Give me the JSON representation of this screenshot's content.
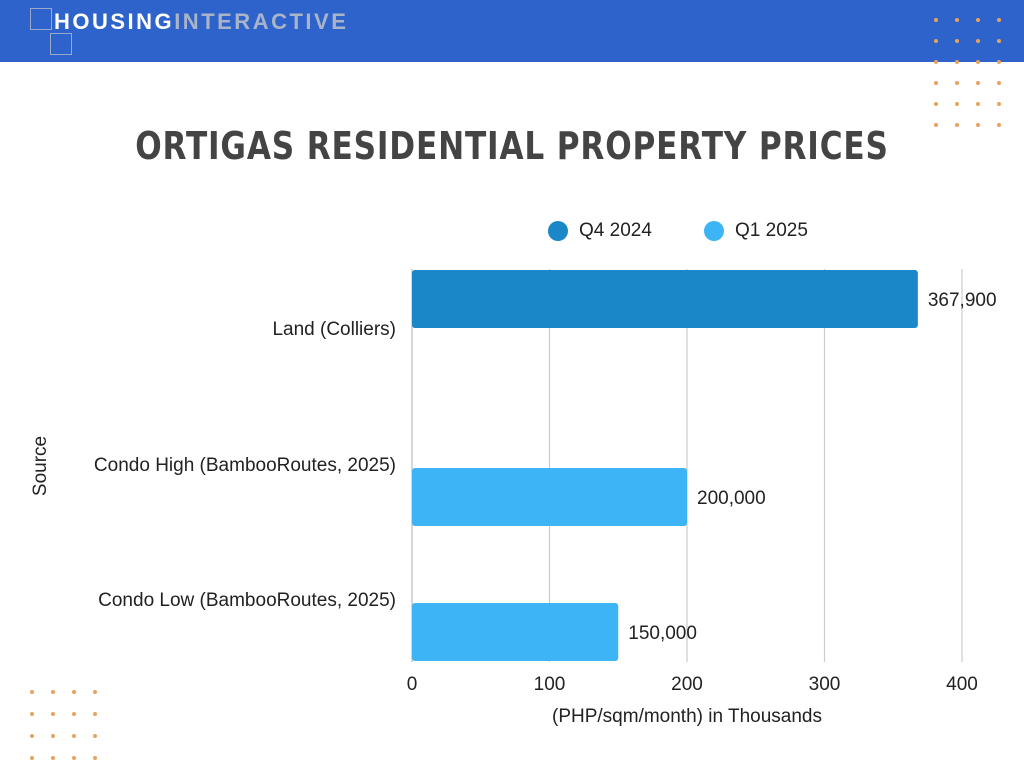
{
  "brand": {
    "part1": "HOUSING",
    "part2": "INTERACTIVE"
  },
  "chart_data": {
    "type": "bar",
    "orientation": "horizontal",
    "title": "ORTIGAS RESIDENTIAL PROPERTY PRICES",
    "xlabel": "(PHP/sqm/month) in Thousands",
    "ylabel": "Source",
    "xlim": [
      0,
      400
    ],
    "xticks": [
      "0",
      "100",
      "200",
      "300",
      "400"
    ],
    "grid": true,
    "legend_position": "top",
    "categories": [
      "Land (Colliers)",
      "Condo High (BambooRoutes, 2025)",
      "Condo Low (BambooRoutes, 2025)"
    ],
    "series": [
      {
        "name": "Q4 2024",
        "color": "#1a87c9",
        "values": [
          367.9,
          null,
          null
        ]
      },
      {
        "name": "Q1 2025",
        "color": "#3db4f5",
        "values": [
          null,
          200.0,
          150.0
        ]
      }
    ],
    "data_labels": [
      "367,900",
      "200,000",
      "150,000"
    ]
  },
  "colors": {
    "header": "#2f63cc",
    "dots": "#e8a25c",
    "title": "#444444",
    "grid": "#cccccc"
  }
}
